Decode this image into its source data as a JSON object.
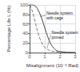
{
  "chart_data": {
    "type": "line",
    "xlabel": "Misalignment (10⁻³ Rad)",
    "ylabel": "Percentage Life L (%)",
    "xlim": [
      0,
      3
    ],
    "ylim": [
      0,
      100
    ],
    "xticks": [
      0,
      1,
      2,
      3
    ],
    "yticks": [
      0,
      20,
      40,
      60,
      80,
      100
    ],
    "grid": true,
    "series": [
      {
        "x": [
          0,
          0.05,
          0.1,
          0.15,
          0.2,
          0.3,
          0.4,
          0.5,
          0.6,
          0.7,
          0.8,
          0.9,
          1.0,
          1.1,
          1.2,
          1.3,
          1.4,
          1.5,
          1.6,
          1.7,
          1.8,
          2.0,
          2.2,
          2.5,
          3.0
        ],
        "values": [
          100,
          100,
          100,
          100,
          100,
          99,
          97,
          93,
          87,
          80,
          72,
          62,
          52,
          42,
          33,
          25,
          18,
          13,
          9,
          6,
          4,
          2,
          1.5,
          1,
          0.5
        ],
        "color": "#444444",
        "line_style": "solid"
      },
      {
        "x": [
          0,
          0.05,
          0.1,
          0.2,
          0.3,
          0.4,
          0.5,
          0.6,
          0.7,
          0.8,
          0.9,
          1.0,
          1.1,
          1.2,
          1.3,
          1.5,
          1.7,
          2.0,
          2.5,
          3.0
        ],
        "values": [
          100,
          98,
          95,
          85,
          73,
          60,
          48,
          37,
          28,
          21,
          15,
          11,
          8,
          6,
          5,
          3,
          2,
          1.5,
          1,
          0.5
        ],
        "color": "#777777",
        "line_style": "dashed"
      }
    ],
    "annotations": [
      {
        "text": "Needle system\nwith cage",
        "x": 0.68,
        "y": 75,
        "text_x": 1.05,
        "text_y": 78
      },
      {
        "text": "Needle system\npinned",
        "x": 1.15,
        "y": 9,
        "text_x": 1.4,
        "text_y": 38
      }
    ]
  }
}
